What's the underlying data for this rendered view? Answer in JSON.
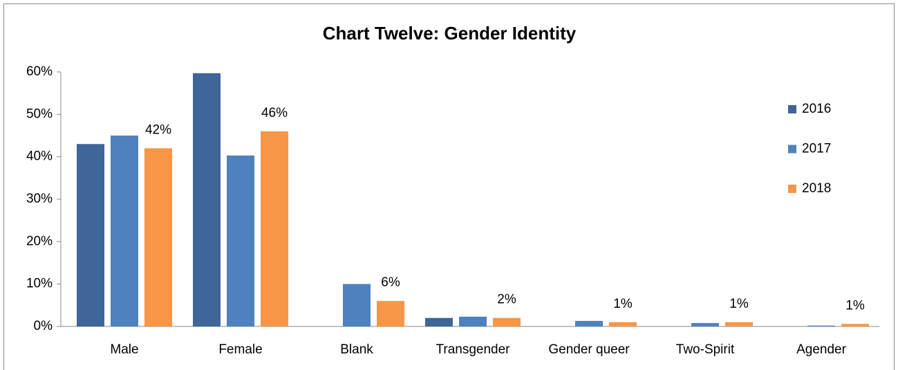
{
  "chart_data": {
    "type": "bar",
    "title": "Chart Twelve: Gender Identity",
    "categories": [
      "Male",
      "Female",
      "Blank",
      "Transgender",
      "Gender queer",
      "Two-Spirit",
      "Agender"
    ],
    "series": [
      {
        "name": "2016",
        "color": "#3e6698",
        "values": [
          43,
          59.7,
          0,
          2,
          0,
          0,
          0
        ]
      },
      {
        "name": "2017",
        "color": "#4f81bd",
        "values": [
          45,
          40.3,
          10,
          2.3,
          1.3,
          0.8,
          0.2
        ]
      },
      {
        "name": "2018",
        "color": "#f79646",
        "values": [
          42,
          46,
          6,
          2,
          1,
          1,
          0.6
        ],
        "value_labels": [
          "42%",
          "46%",
          "6%",
          "2%",
          "1%",
          "1%",
          "1%"
        ]
      }
    ],
    "ylim": [
      0,
      60
    ],
    "yticks": [
      {
        "value": 0,
        "label": "0%"
      },
      {
        "value": 10,
        "label": "10%"
      },
      {
        "value": 20,
        "label": "20%"
      },
      {
        "value": 30,
        "label": "30%"
      },
      {
        "value": 40,
        "label": "40%"
      },
      {
        "value": 50,
        "label": "50%"
      },
      {
        "value": 60,
        "label": "60%"
      }
    ],
    "legend": "right"
  }
}
